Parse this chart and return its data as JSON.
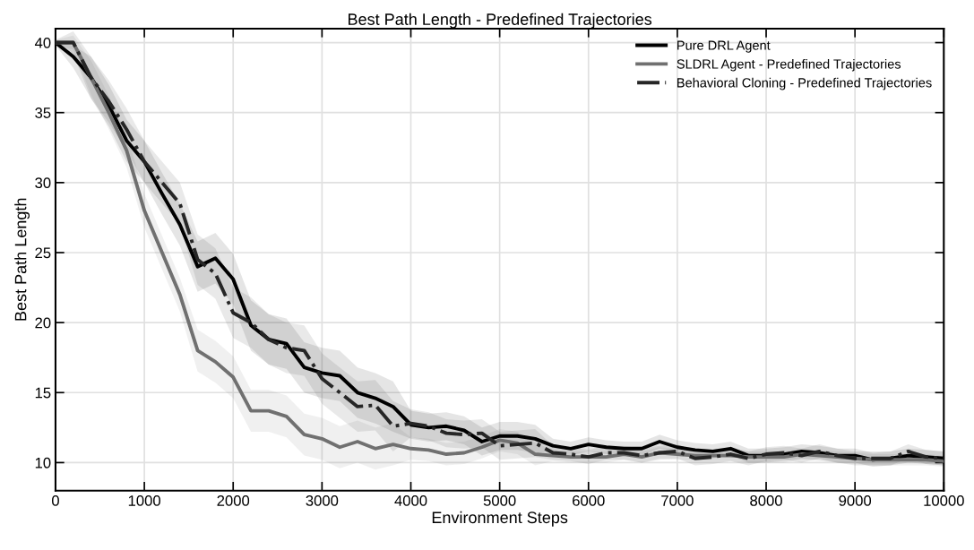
{
  "chart_data": {
    "type": "line",
    "title": "Best Path Length - Predefined Trajectories",
    "xlabel": "Environment Steps",
    "ylabel": "Best Path Length",
    "x": [
      0,
      200,
      400,
      600,
      800,
      1000,
      1200,
      1400,
      1600,
      1800,
      2000,
      2200,
      2400,
      2600,
      2800,
      3000,
      3200,
      3400,
      3600,
      3800,
      4000,
      4200,
      4400,
      4600,
      4800,
      5000,
      5200,
      5400,
      5600,
      5800,
      6000,
      6200,
      6400,
      6600,
      6800,
      7000,
      7200,
      7400,
      7600,
      7800,
      8000,
      8200,
      8400,
      8600,
      8800,
      9000,
      9200,
      9400,
      9600,
      9800,
      10000
    ],
    "series": [
      {
        "name": "Pure DRL Agent",
        "color": "#000000",
        "line_style": "solid",
        "values": [
          40,
          39,
          37.5,
          35.5,
          33,
          31.5,
          29.2,
          27,
          24,
          24.6,
          23.1,
          19.8,
          18.8,
          18.5,
          16.8,
          16.4,
          16.2,
          15,
          14.6,
          14,
          12.7,
          12.5,
          12.6,
          12.3,
          11.5,
          11.9,
          11.9,
          11.7,
          11.2,
          11.0,
          11.3,
          11.1,
          11.0,
          11.0,
          11.5,
          11.1,
          10.9,
          10.8,
          11.0,
          10.5,
          10.5,
          10.6,
          10.8,
          10.7,
          10.5,
          10.5,
          10.2,
          10.3,
          10.5,
          10.4,
          10.3
        ],
        "lower": [
          39.8,
          38.2,
          36,
          34,
          31.5,
          30,
          27.7,
          25.5,
          22.2,
          22.8,
          21.3,
          18,
          17,
          16.7,
          15,
          14.6,
          14.4,
          13.2,
          12.8,
          12.2,
          11.7,
          11.5,
          11.6,
          11.3,
          10.5,
          10.9,
          10.9,
          10.7,
          10.7,
          10.5,
          10.8,
          10.6,
          10.5,
          10.5,
          11.0,
          10.6,
          10.4,
          10.3,
          10.5,
          10.0,
          10.0,
          10.1,
          10.3,
          10.2,
          10.0,
          10.0,
          9.7,
          9.8,
          10.0,
          9.9,
          9.8
        ],
        "upper": [
          40.2,
          39.8,
          39,
          37,
          34.5,
          33,
          30.7,
          28.5,
          25.8,
          26.4,
          24.9,
          21.6,
          20.6,
          20.3,
          18.6,
          18.2,
          18,
          16.8,
          16.4,
          15.8,
          13.7,
          13.5,
          13.6,
          13.3,
          12.5,
          12.9,
          12.9,
          12.7,
          11.7,
          11.5,
          11.8,
          11.6,
          11.5,
          11.5,
          12.0,
          11.6,
          11.4,
          11.3,
          11.5,
          11.0,
          11.0,
          11.1,
          11.3,
          11.2,
          11.0,
          11.0,
          10.7,
          10.8,
          11.0,
          10.9,
          10.8
        ]
      },
      {
        "name": "SLDRL Agent - Predefined Trajectories",
        "color": "#707070",
        "line_style": "solid",
        "values": [
          40,
          40,
          37.5,
          35,
          32.3,
          28,
          25,
          22,
          18,
          17.2,
          16.1,
          13.7,
          13.7,
          13.3,
          12.0,
          11.7,
          11.1,
          11.5,
          11.0,
          11.3,
          11.0,
          10.9,
          10.6,
          10.7,
          11.1,
          11.6,
          11.4,
          10.6,
          10.5,
          10.4,
          10.4,
          10.4,
          10.6,
          10.4,
          10.7,
          10.6,
          10.5,
          10.5,
          10.5,
          10.4,
          10.4,
          10.4,
          10.6,
          10.5,
          10.4,
          10.3,
          10.2,
          10.2,
          10.2,
          10.2,
          10.1
        ],
        "lower": [
          39.8,
          39.5,
          36.3,
          33.8,
          31.1,
          26.8,
          23.8,
          20.8,
          16.5,
          15.7,
          14.6,
          12.2,
          12.2,
          11.8,
          10.5,
          10.2,
          9.6,
          10,
          9.5,
          9.8,
          10.2,
          10.1,
          9.8,
          9.9,
          10.3,
          10.8,
          10.6,
          9.8,
          10.1,
          10.0,
          10.0,
          10.0,
          10.2,
          10.0,
          10.3,
          10.2,
          10.1,
          10.1,
          10.1,
          10.0,
          10.0,
          10.0,
          10.2,
          10.1,
          10.0,
          9.9,
          9.8,
          9.8,
          9.8,
          9.8,
          9.7
        ],
        "upper": [
          40.2,
          40.5,
          38.7,
          36.2,
          33.5,
          29.2,
          26.2,
          23.2,
          19.5,
          18.7,
          17.6,
          15.2,
          15.2,
          14.8,
          13.5,
          13.2,
          12.6,
          13,
          12.5,
          12.8,
          11.8,
          11.7,
          11.4,
          11.5,
          11.9,
          12.4,
          12.2,
          11.4,
          10.9,
          10.8,
          10.8,
          10.8,
          11.0,
          10.8,
          11.1,
          11.0,
          10.9,
          10.9,
          10.9,
          10.8,
          10.8,
          10.8,
          11.0,
          10.9,
          10.8,
          10.7,
          10.6,
          10.6,
          10.6,
          10.6,
          10.5
        ]
      },
      {
        "name": "Behavioral Cloning - Predefined Trajectories",
        "color": "#262626",
        "line_style": "dashdot",
        "values": [
          40,
          40,
          37.5,
          35.8,
          33.8,
          31.5,
          30,
          28.5,
          24.5,
          23.5,
          20.7,
          20,
          18.8,
          18.2,
          18.0,
          16.0,
          15.0,
          14.0,
          14.1,
          12.6,
          12.8,
          12.6,
          12.1,
          12.0,
          12.1,
          11.2,
          11.3,
          11.4,
          10.7,
          10.6,
          10.4,
          10.7,
          10.7,
          10.5,
          10.7,
          10.8,
          10.3,
          10.4,
          10.6,
          10.3,
          10.6,
          10.7,
          10.5,
          10.8,
          10.5,
          10.3,
          10.3,
          10.3,
          10.8,
          10.4,
          10.3
        ],
        "lower": [
          39.8,
          39.2,
          36,
          34.3,
          32.3,
          30,
          28.5,
          27,
          22.7,
          21.7,
          18.9,
          18.2,
          17,
          16.4,
          16.2,
          14.2,
          13.2,
          12.2,
          12.3,
          10.8,
          11.8,
          11.6,
          11.1,
          11.0,
          11.1,
          10.2,
          10.3,
          10.4,
          10.2,
          10.1,
          9.9,
          10.2,
          10.2,
          10.0,
          10.2,
          10.3,
          9.8,
          9.9,
          10.1,
          9.8,
          10.1,
          10.2,
          10.0,
          10.3,
          10.0,
          9.8,
          9.8,
          9.8,
          10.3,
          9.9,
          9.8
        ],
        "upper": [
          40.2,
          40.8,
          39,
          37.3,
          35.3,
          33,
          31.5,
          30,
          26.3,
          25.3,
          22.5,
          21.8,
          20.6,
          20,
          19.8,
          17.8,
          16.8,
          15.8,
          15.9,
          14.4,
          13.8,
          13.6,
          13.1,
          13.0,
          13.1,
          12.2,
          12.3,
          12.4,
          11.2,
          11.1,
          10.9,
          11.2,
          11.2,
          11.0,
          11.2,
          11.3,
          10.8,
          10.9,
          11.1,
          10.8,
          11.1,
          11.2,
          11.0,
          11.3,
          11.0,
          10.8,
          10.8,
          10.8,
          11.3,
          10.9,
          10.8
        ]
      }
    ],
    "xlim": [
      0,
      10000
    ],
    "xticks": [
      0,
      1000,
      2000,
      3000,
      4000,
      5000,
      6000,
      7000,
      8000,
      9000,
      10000
    ],
    "ylim": [
      8,
      41
    ],
    "yticks": [
      10,
      15,
      20,
      25,
      30,
      35,
      40
    ],
    "grid": true,
    "legend": "top right"
  }
}
